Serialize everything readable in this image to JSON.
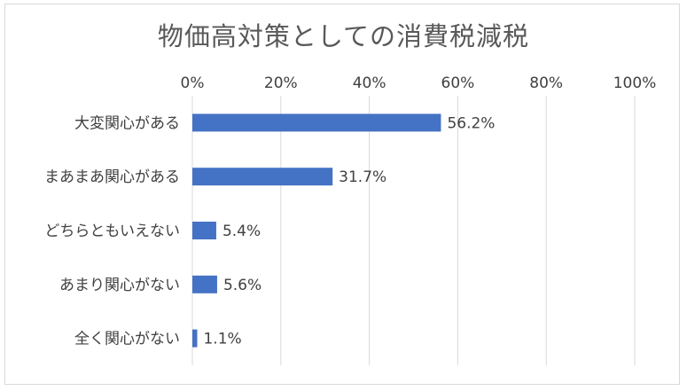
{
  "chart_data": {
    "type": "bar",
    "orientation": "horizontal",
    "title": "物価高対策としての消費税減税",
    "categories": [
      "大変関心がある",
      "まあまあ関心がある",
      "どちらともいえない",
      "あまり関心がない",
      "全く関心がない"
    ],
    "values": [
      56.2,
      31.7,
      5.4,
      5.6,
      1.1
    ],
    "data_labels": [
      "56.2%",
      "31.7%",
      "5.4%",
      "5.6%",
      "1.1%"
    ],
    "x_ticks": [
      "0%",
      "20%",
      "40%",
      "60%",
      "80%",
      "100%"
    ],
    "xlim": [
      0,
      100
    ],
    "x_axis_position": "top",
    "grid": true,
    "legend": "none",
    "colors": {
      "bar": "#4472c4",
      "grid": "#d9d9d9",
      "text": "#404040",
      "title": "#595959"
    }
  }
}
